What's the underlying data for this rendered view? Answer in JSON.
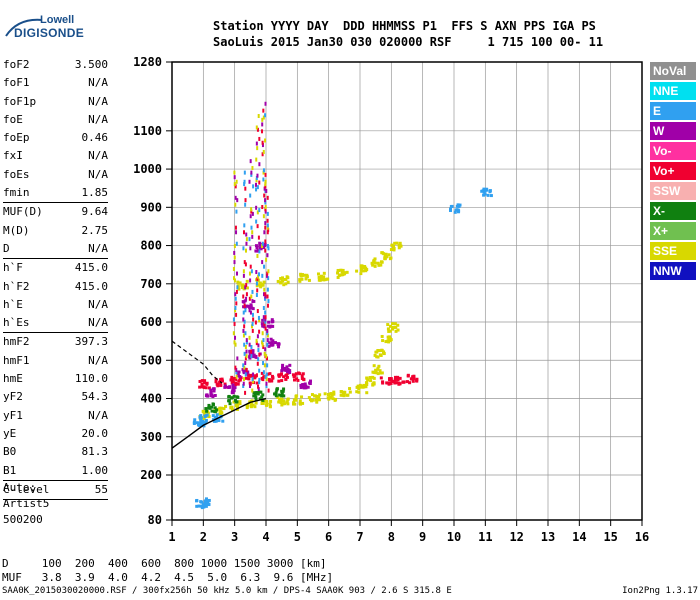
{
  "logo": {
    "line1": "Lowell",
    "line2": "DIGISONDE"
  },
  "header": {
    "line1": "Station YYYY DAY  DDD HHMMSS P1  FFS S AXN PPS IGA PS",
    "line2": "SaoLuis 2015 Jan30 030 020000 RSF     1 715 100 00- 11"
  },
  "params": [
    {
      "name": "foF2",
      "value": "3.500"
    },
    {
      "name": "foF1",
      "value": "N/A"
    },
    {
      "name": "foF1p",
      "value": "N/A"
    },
    {
      "name": "foE",
      "value": "N/A"
    },
    {
      "name": "foEp",
      "value": "0.46"
    },
    {
      "name": "fxI",
      "value": "N/A"
    },
    {
      "name": "foEs",
      "value": "N/A"
    },
    {
      "name": "fmin",
      "value": "1.85",
      "sep": true
    },
    {
      "name": "MUF(D)",
      "value": "9.64"
    },
    {
      "name": "M(D)",
      "value": "2.75"
    },
    {
      "name": "D",
      "value": "N/A",
      "sep": true
    },
    {
      "name": "h`F",
      "value": "415.0"
    },
    {
      "name": "h`F2",
      "value": "415.0"
    },
    {
      "name": "h`E",
      "value": "N/A"
    },
    {
      "name": "h`Es",
      "value": "N/A",
      "sep": true
    },
    {
      "name": "hmF2",
      "value": "397.3"
    },
    {
      "name": "hmF1",
      "value": "N/A"
    },
    {
      "name": "hmE",
      "value": "110.0"
    },
    {
      "name": "yF2",
      "value": "54.3"
    },
    {
      "name": "yF1",
      "value": "N/A"
    },
    {
      "name": "yE",
      "value": "20.0"
    },
    {
      "name": "B0",
      "value": "81.3"
    },
    {
      "name": "B1",
      "value": "1.00",
      "sep": true
    },
    {
      "name": "C-level",
      "value": "55",
      "sep": true
    }
  ],
  "auto": {
    "line1": "Auto:",
    "line2": "Artist5",
    "line3": "500200"
  },
  "legend": [
    {
      "label": "NoVal",
      "color": "#909090"
    },
    {
      "label": "NNE",
      "color": "#00e0f0"
    },
    {
      "label": "E",
      "color": "#30a0f0"
    },
    {
      "label": "W",
      "color": "#a000a8"
    },
    {
      "label": "Vo-",
      "color": "#ff30a0"
    },
    {
      "label": "Vo+",
      "color": "#f00030"
    },
    {
      "label": "SSW",
      "color": "#f8b0b0"
    },
    {
      "label": "X-",
      "color": "#108010"
    },
    {
      "label": "X+",
      "color": "#70c050"
    },
    {
      "label": "SSE",
      "color": "#d8d800"
    },
    {
      "label": "NNW",
      "color": "#1010c0"
    }
  ],
  "footer": {
    "d_row": "D     100  200  400  600  800 1000 1500 3000 [km]",
    "muf_row": "MUF   3.8  3.9  4.0  4.2  4.5  5.0  6.3  9.6 [MHz]",
    "file_info": "SAA0K_2015030020000.RSF / 300fx256h 50 kHz 5.0 km / DPS-4 SAA0K 903 / 2.6 S 315.8 E",
    "version": "Ion2Png 1.3.17"
  },
  "chart_data": {
    "type": "scatter",
    "x_ticks": [
      "1",
      "2",
      "3",
      "4",
      "5",
      "6",
      "7",
      "8",
      "9",
      "10",
      "11",
      "12",
      "13",
      "14",
      "15",
      "16"
    ],
    "y_ticks": [
      "80",
      "200",
      "300",
      "400",
      "500",
      "600",
      "700",
      "800",
      "900",
      "1000",
      "1100",
      "1280"
    ],
    "xlim": [
      1,
      16
    ],
    "ylim": [
      80,
      1280
    ],
    "grid": true,
    "series": [
      {
        "name": "SSE",
        "color": "#d8d800",
        "points": [
          [
            3.2,
            700
          ],
          [
            3.8,
            705
          ],
          [
            4.5,
            712
          ],
          [
            5.2,
            718
          ],
          [
            5.8,
            724
          ],
          [
            6.4,
            730
          ],
          [
            7.0,
            740
          ],
          [
            7.5,
            760
          ],
          [
            7.8,
            780
          ],
          [
            8.1,
            800
          ],
          [
            2.0,
            360
          ],
          [
            2.5,
            375
          ],
          [
            3.0,
            385
          ],
          [
            3.5,
            388
          ],
          [
            4.0,
            392
          ],
          [
            4.5,
            396
          ],
          [
            5.0,
            400
          ],
          [
            5.5,
            405
          ],
          [
            6.0,
            410
          ],
          [
            6.5,
            420
          ],
          [
            7.0,
            430
          ],
          [
            7.3,
            450
          ],
          [
            7.5,
            480
          ],
          [
            7.6,
            520
          ],
          [
            7.8,
            560
          ],
          [
            8.0,
            590
          ]
        ]
      },
      {
        "name": "Vo+",
        "color": "#f00030",
        "points": [
          [
            2.0,
            440
          ],
          [
            2.5,
            445
          ],
          [
            3.0,
            450
          ],
          [
            3.5,
            455
          ],
          [
            4.0,
            460
          ],
          [
            4.5,
            460
          ],
          [
            5.0,
            462
          ],
          [
            7.8,
            450
          ],
          [
            8.2,
            452
          ],
          [
            8.6,
            455
          ]
        ]
      },
      {
        "name": "W",
        "color": "#a000a8",
        "points": [
          [
            2.2,
            420
          ],
          [
            2.8,
            430
          ],
          [
            3.2,
            470
          ],
          [
            3.6,
            520
          ],
          [
            4.0,
            600
          ],
          [
            3.4,
            650
          ],
          [
            3.8,
            800
          ],
          [
            4.2,
            550
          ],
          [
            4.6,
            480
          ],
          [
            5.2,
            440
          ]
        ]
      },
      {
        "name": "E",
        "color": "#30a0f0",
        "points": [
          [
            1.8,
            340
          ],
          [
            2.0,
            350
          ],
          [
            2.4,
            355
          ],
          [
            1.9,
            130
          ],
          [
            2.0,
            128
          ],
          [
            10.0,
            900
          ],
          [
            11.0,
            945
          ]
        ]
      },
      {
        "name": "X-",
        "color": "#108010",
        "points": [
          [
            2.2,
            380
          ],
          [
            2.9,
            400
          ],
          [
            3.7,
            410
          ],
          [
            4.4,
            420
          ]
        ]
      }
    ],
    "fitted_profile": [
      [
        1.0,
        270
      ],
      [
        1.5,
        300
      ],
      [
        2.0,
        330
      ],
      [
        2.5,
        350
      ],
      [
        3.0,
        370
      ],
      [
        3.5,
        390
      ],
      [
        4.0,
        400
      ]
    ],
    "dashed_profile": [
      [
        1.0,
        550
      ],
      [
        1.5,
        520
      ],
      [
        2.0,
        490
      ],
      [
        2.3,
        460
      ],
      [
        2.6,
        440
      ]
    ]
  }
}
